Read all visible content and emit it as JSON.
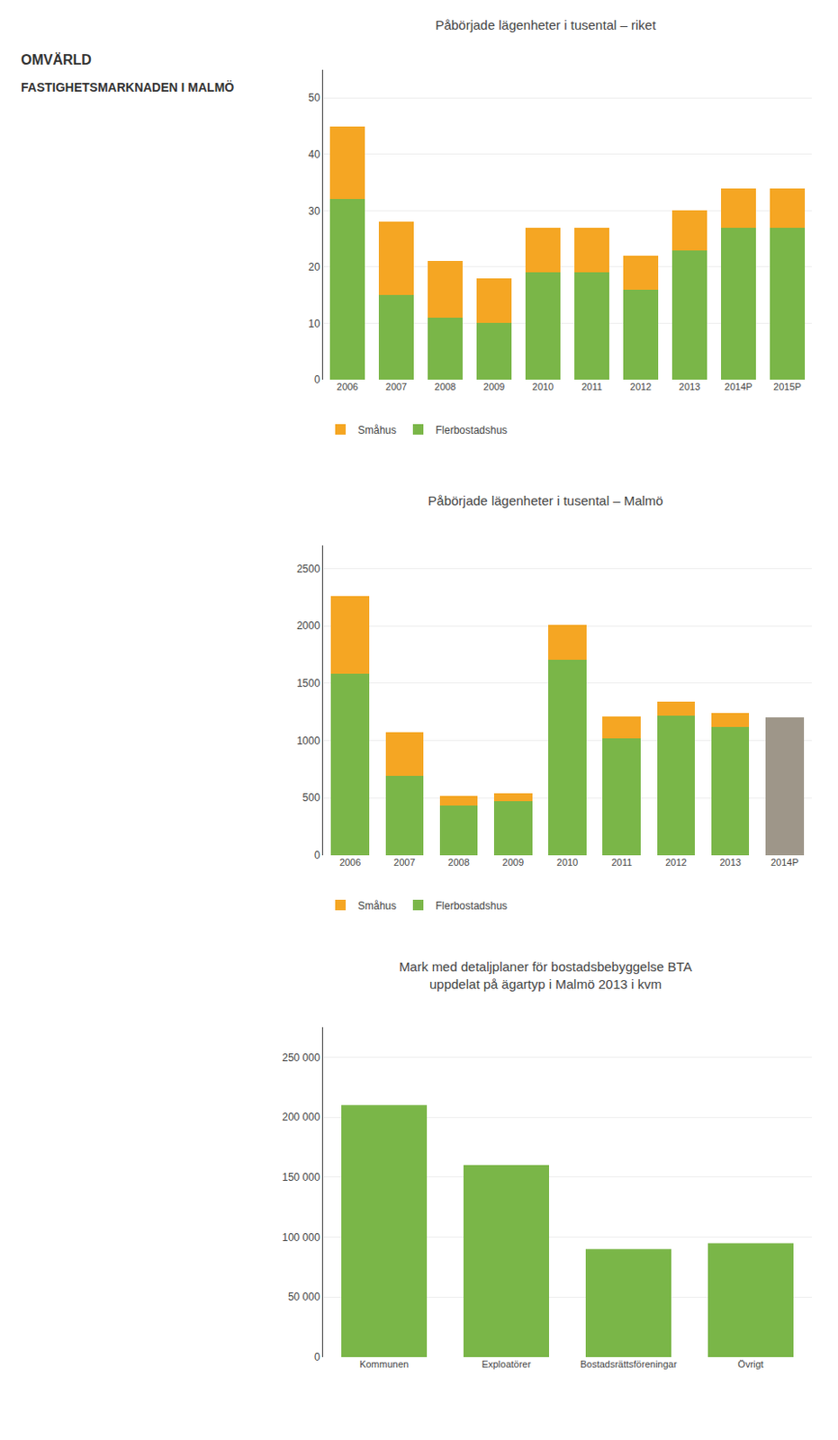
{
  "title": "OMVÄRLD",
  "subtitle": "FASTIGHETSMARKNADEN I MALMÖ",
  "chart_data": [
    {
      "type": "bar",
      "title": "Påbörjade lägenheter i tusental – riket",
      "categories": [
        "2006",
        "2007",
        "2008",
        "2009",
        "2010",
        "2011",
        "2012",
        "2013",
        "2014P",
        "2015P"
      ],
      "series": [
        {
          "name": "Flerbostadshus",
          "color": "#7ab648",
          "values": [
            32,
            15,
            11,
            10,
            19,
            19,
            16,
            23,
            27,
            27
          ]
        },
        {
          "name": "Småhus",
          "color": "#f5a623",
          "values": [
            13,
            13,
            10,
            8,
            8,
            8,
            6,
            7,
            7,
            7
          ]
        }
      ],
      "stacked": true,
      "ylim": [
        0,
        55
      ],
      "yticks": [
        0,
        10,
        20,
        30,
        40,
        50
      ],
      "grid": true,
      "legend": "bottom"
    },
    {
      "type": "bar",
      "title": "Påbörjade lägenheter i tusental – Malmö",
      "categories": [
        "2006",
        "2007",
        "2008",
        "2009",
        "2010",
        "2011",
        "2012",
        "2013",
        "2014P"
      ],
      "series": [
        {
          "name": "Flerbostadshus",
          "color": "#7ab648",
          "values": [
            1580,
            690,
            430,
            470,
            1700,
            1020,
            1220,
            1120,
            0
          ]
        },
        {
          "name": "Småhus",
          "color": "#f5a623",
          "values": [
            680,
            380,
            90,
            70,
            310,
            190,
            120,
            120,
            0
          ]
        },
        {
          "color": "#9e9689",
          "values": [
            0,
            0,
            0,
            0,
            0,
            0,
            0,
            0,
            1200
          ]
        }
      ],
      "stacked": true,
      "ylim": [
        0,
        2700
      ],
      "yticks": [
        0,
        500,
        1000,
        1500,
        2000,
        2500
      ],
      "grid": true,
      "legend": "bottom"
    },
    {
      "type": "bar",
      "title": "Mark med detaljplaner för bostadsbebyggelse BTA\nuppdelat på ägartyp i Malmö 2013 i kvm",
      "categories": [
        "Kommunen",
        "Exploatörer",
        "Bostadsrättsföreningar",
        "Övrigt"
      ],
      "values": [
        210000,
        160000,
        90000,
        95000
      ],
      "color": "#7ab648",
      "ylim": [
        0,
        275000
      ],
      "yticks": [
        0,
        {
          "value": 50000,
          "label": "50 000"
        },
        {
          "value": 100000,
          "label": "100 000"
        },
        {
          "value": 150000,
          "label": "150 000"
        },
        {
          "value": 200000,
          "label": "200 000"
        },
        {
          "value": 250000,
          "label": "250 000"
        }
      ],
      "grid": true
    }
  ]
}
